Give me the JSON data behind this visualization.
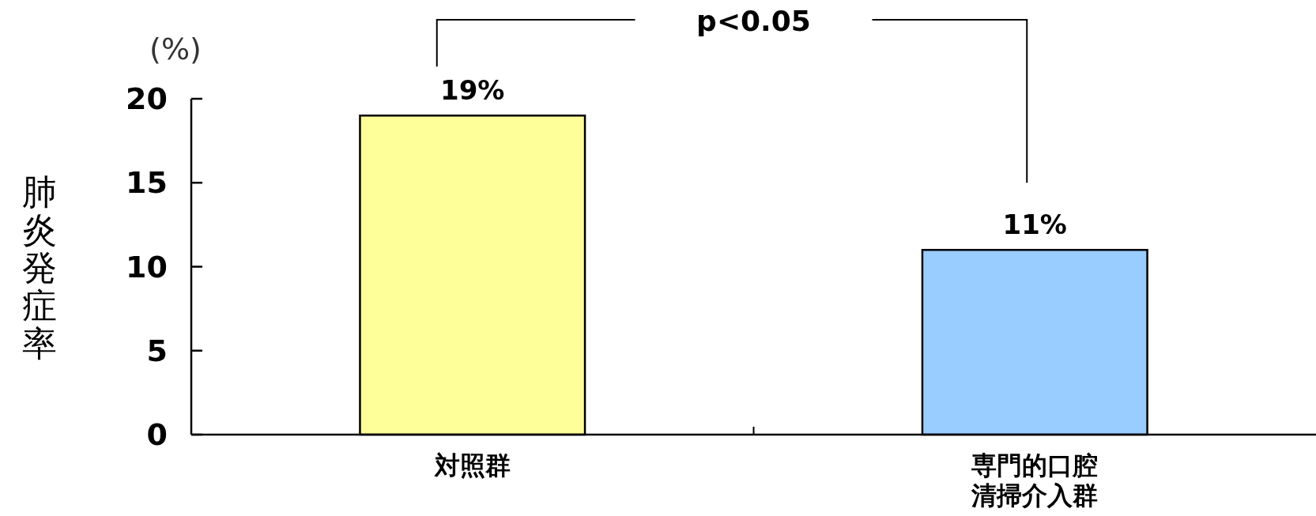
{
  "chart_data": {
    "type": "bar",
    "ylabel": "肺炎発症率",
    "categories": [
      "対照群",
      "専門的口腔清掃介入群"
    ],
    "values": [
      19,
      11
    ],
    "colors": [
      "#ffff99",
      "#99ccff"
    ],
    "value_labels": [
      "19%",
      "11%"
    ],
    "ylim": [
      0,
      20
    ],
    "yticks": [
      0,
      5,
      10,
      15,
      20
    ],
    "annotations": [
      "(%)",
      "p<0.05"
    ]
  }
}
